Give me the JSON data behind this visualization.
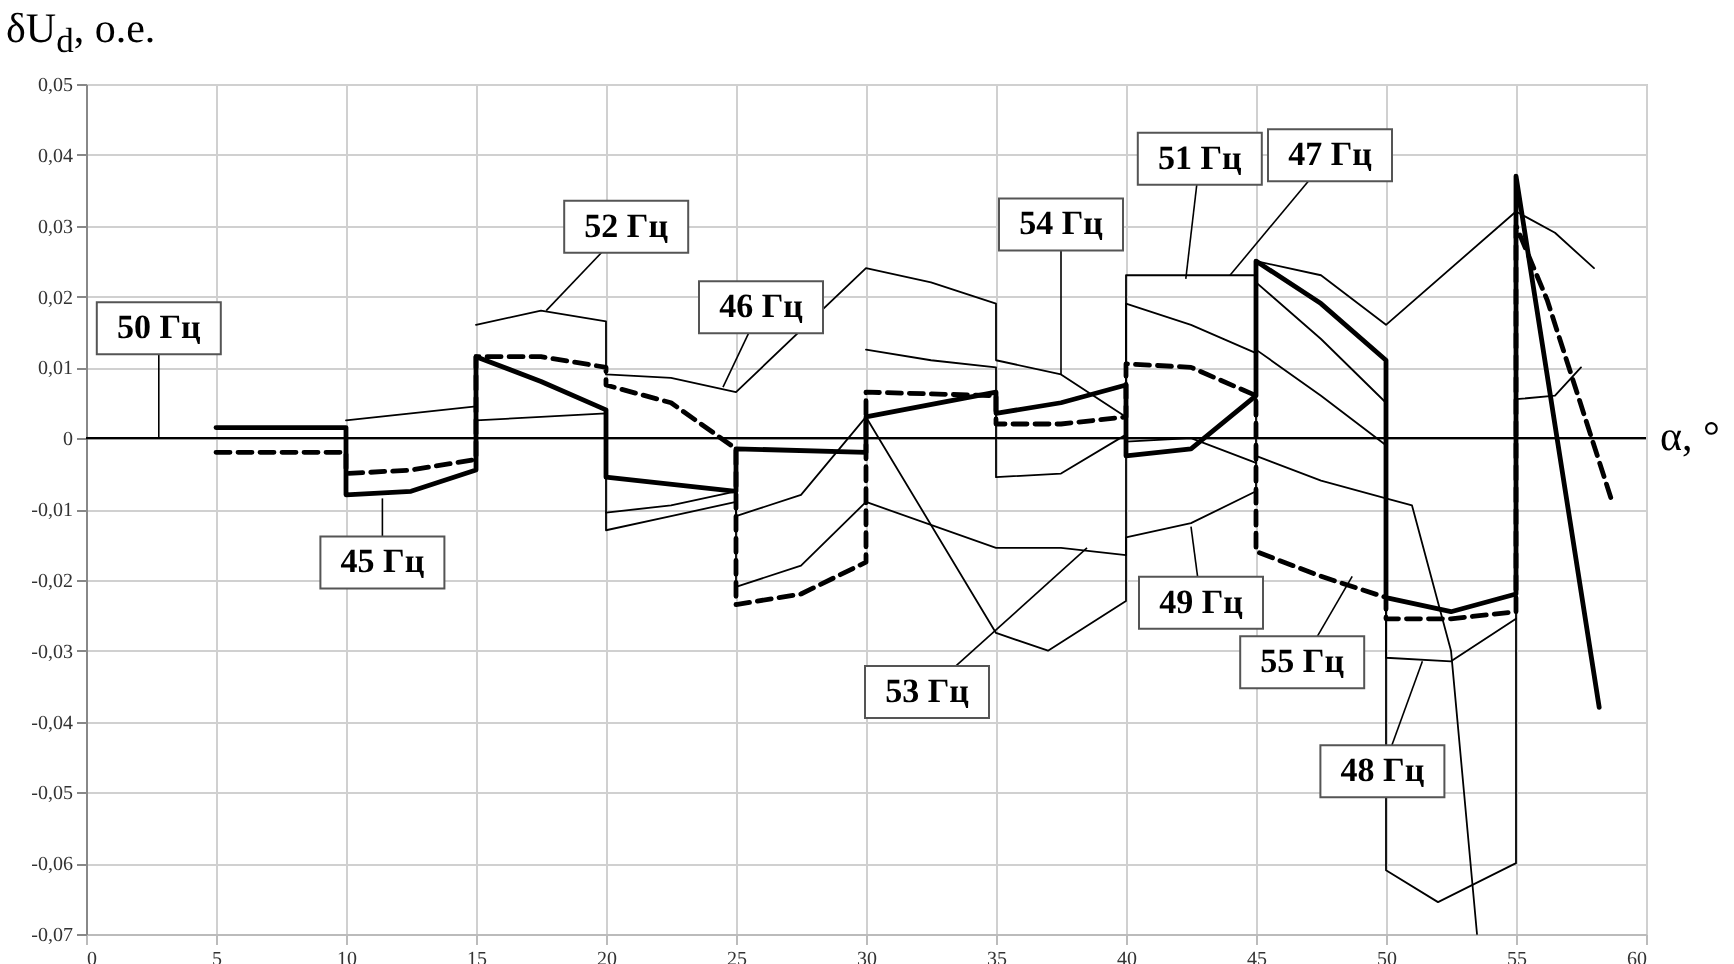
{
  "chart_data": {
    "type": "line",
    "xlabel": "α, °",
    "ylabel": "δU$_{d}$, о.е.",
    "xlim": [
      0,
      60
    ],
    "xticks": [
      0,
      5,
      10,
      15,
      20,
      25,
      30,
      35,
      40,
      45,
      50,
      55,
      60
    ],
    "ylim": [
      -0.07,
      0.05
    ],
    "yticks": [
      {
        "value": -0.07,
        "label": "-0,07"
      },
      {
        "value": -0.06,
        "label": "-0,06"
      },
      {
        "value": -0.05,
        "label": "-0,05"
      },
      {
        "value": -0.04,
        "label": "-0,04"
      },
      {
        "value": -0.03,
        "label": "-0,03"
      },
      {
        "value": -0.02,
        "label": "-0,02"
      },
      {
        "value": -0.01,
        "label": "-0,01"
      },
      0,
      {
        "value": 0.01,
        "label": "0,01"
      },
      {
        "value": 0.02,
        "label": "0,02"
      },
      {
        "value": 0.03,
        "label": "0,03"
      },
      {
        "value": 0.04,
        "label": "0,04"
      },
      {
        "value": 0.05,
        "label": "0,05"
      }
    ],
    "grid": true,
    "marker": "none",
    "ref_lines": [
      {
        "axis": "y",
        "value": 0,
        "color": "#000000"
      }
    ],
    "series": [
      {
        "color": "#000000",
        "line_style": "solid",
        "x": [
          5,
          10,
          10,
          12.5,
          15,
          15,
          17.5,
          20,
          20,
          25,
          25,
          30,
          30,
          35,
          35,
          37.5,
          40,
          40,
          42.5,
          45,
          45,
          47.5,
          50,
          50,
          52.5,
          55,
          55,
          58.2
        ],
        "values": [
          0.0015,
          0.0015,
          -0.008,
          -0.0075,
          -0.0045,
          0.0115,
          0.008,
          0.004,
          -0.0055,
          -0.0075,
          -0.0015,
          -0.002,
          0.003,
          0.0065,
          0.0035,
          0.005,
          0.0075,
          -0.0025,
          -0.0015,
          0.006,
          0.025,
          0.019,
          0.011,
          -0.0225,
          -0.0245,
          -0.022,
          0.037,
          -0.038
        ]
      },
      {
        "color": "#000000",
        "line_style": "dashed",
        "x": [
          5,
          10,
          10,
          12.5,
          15,
          15,
          17.5,
          20,
          20,
          22.5,
          25,
          25,
          27.5,
          30,
          30,
          35,
          35,
          37.5,
          40,
          40,
          42.5,
          45,
          45,
          47.5,
          50,
          50,
          52.5,
          55,
          55,
          56.2,
          58.7
        ],
        "values": [
          -0.002,
          -0.002,
          -0.005,
          -0.0045,
          -0.003,
          0.0115,
          0.0115,
          0.01,
          0.0075,
          0.005,
          -0.0015,
          -0.0235,
          -0.022,
          -0.0175,
          0.0065,
          0.006,
          0.002,
          0.002,
          0.003,
          0.0105,
          0.01,
          0.006,
          -0.016,
          -0.0195,
          -0.0225,
          -0.0255,
          -0.0255,
          -0.0245,
          0.03,
          0.0195,
          -0.009
        ]
      },
      {
        "color": "#000000",
        "line_style": "solid",
        "x": [
          15,
          17.5,
          20,
          20,
          22.5,
          25,
          30,
          32.5,
          35,
          35,
          37.5,
          40,
          40,
          42.5,
          45,
          45,
          47.5,
          50,
          55,
          56.5,
          58
        ],
        "values": [
          0.016,
          0.018,
          0.0165,
          0.009,
          0.0085,
          0.0065,
          0.024,
          0.022,
          0.019,
          0.011,
          0.009,
          0.003,
          0.023,
          0.023,
          0.023,
          0.025,
          0.023,
          0.016,
          0.032,
          0.029,
          0.024
        ]
      },
      {
        "color": "#000000",
        "line_style": "solid",
        "x": [
          10,
          12.5,
          15,
          15,
          17.5,
          20,
          20,
          22.5,
          25,
          25,
          27.5,
          30,
          35,
          37.5,
          40,
          40,
          42.5,
          45,
          45,
          47.5,
          50,
          51,
          52.5,
          53.5
        ],
        "values": [
          0.0025,
          0.0035,
          0.0045,
          0.0025,
          0.003,
          0.0035,
          -0.013,
          -0.011,
          -0.009,
          -0.021,
          -0.018,
          -0.009,
          -0.0155,
          -0.0155,
          -0.0165,
          -0.014,
          -0.012,
          -0.0075,
          -0.0025,
          -0.006,
          -0.0085,
          -0.0095,
          -0.03,
          -0.07
        ]
      },
      {
        "color": "#000000",
        "line_style": "solid",
        "x": [
          20,
          22.5,
          25,
          25,
          27.5,
          30,
          35,
          37,
          40,
          40,
          42.5,
          45,
          45,
          47.5,
          50,
          50,
          52.5,
          55
        ],
        "values": [
          -0.0105,
          -0.0095,
          -0.0075,
          -0.011,
          -0.008,
          0.003,
          -0.0275,
          -0.03,
          -0.023,
          -0.0005,
          0,
          -0.0035,
          0.0125,
          0.006,
          -0.001,
          -0.031,
          -0.0315,
          -0.0255
        ]
      },
      {
        "color": "#000000",
        "line_style": "solid",
        "x": [
          30,
          32.5,
          35,
          35,
          37.5,
          40,
          40,
          42.5,
          45,
          45,
          47.5,
          50,
          50,
          52,
          55,
          55,
          56.5,
          57.5
        ],
        "values": [
          0.0125,
          0.011,
          0.01,
          -0.0055,
          -0.005,
          0.0005,
          0.019,
          0.016,
          0.012,
          0.022,
          0.014,
          0.005,
          -0.061,
          -0.0655,
          -0.06,
          0.0055,
          0.006,
          0.01
        ]
      }
    ],
    "annotations": [
      {
        "text": "50 Гц",
        "x": 2.8,
        "y": 0
      },
      {
        "text": "52 Гц",
        "x": 17.7,
        "y": 0.018
      },
      {
        "text": "46 Гц",
        "x": 24.5,
        "y": 0.0072
      },
      {
        "text": "45 Гц",
        "x": 11.4,
        "y": -0.0085
      },
      {
        "text": "54 Гц",
        "x": 37.5,
        "y": 0.009
      },
      {
        "text": "53 Гц",
        "x": 38.5,
        "y": -0.0155
      },
      {
        "text": "51 Гц",
        "x": 42.3,
        "y": 0.0225
      },
      {
        "text": "47 Гц",
        "x": 44,
        "y": 0.023
      },
      {
        "text": "49 Гц",
        "x": 42.5,
        "y": -0.0125
      },
      {
        "text": "55 Гц",
        "x": 48.7,
        "y": -0.0195
      },
      {
        "text": "48 Гц",
        "x": 51.4,
        "y": -0.0315
      }
    ]
  }
}
